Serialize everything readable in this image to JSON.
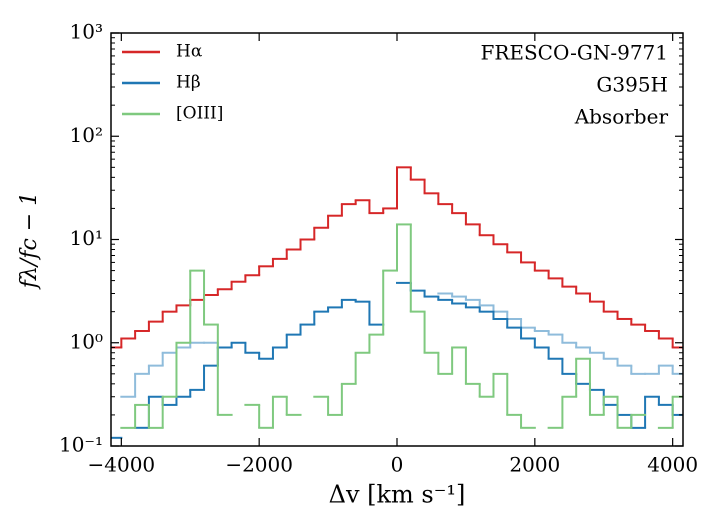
{
  "chart_data": {
    "type": "step",
    "log_y": true,
    "xlabel": "Δv [km s⁻¹]",
    "ylabel": "fλ/fc − 1",
    "annotations": [
      "FRESCO-GN-9771",
      "G395H",
      "Absorber"
    ],
    "legend": "upper left",
    "xlim": [
      -4150,
      4150
    ],
    "xticks": [
      {
        "value": -4000,
        "label": "−4000"
      },
      {
        "value": -2000,
        "label": "−2000"
      },
      0,
      2000,
      4000
    ],
    "ylim": [
      0.1,
      1000
    ],
    "yticks": [
      {
        "value": 0.1,
        "label": "10⁻¹"
      },
      {
        "value": 1,
        "label": "10⁰"
      },
      {
        "value": 10,
        "label": "10¹"
      },
      {
        "value": 100,
        "label": "10²"
      },
      {
        "value": 1000,
        "label": "10³"
      }
    ],
    "x": [
      -4100,
      -3900,
      -3700,
      -3500,
      -3300,
      -3100,
      -2900,
      -2700,
      -2500,
      -2300,
      -2100,
      -1900,
      -1700,
      -1500,
      -1300,
      -1100,
      -900,
      -700,
      -500,
      -300,
      -100,
      100,
      300,
      500,
      700,
      900,
      1100,
      1300,
      1500,
      1700,
      1900,
      2100,
      2300,
      2500,
      2700,
      2900,
      3100,
      3300,
      3500,
      3700,
      3900,
      4100
    ],
    "series": [
      {
        "color": "#8fbcdb",
        "values": [
          null,
          0.3,
          0.5,
          0.6,
          0.8,
          0.9,
          1.0,
          1.0,
          0.9,
          null,
          null,
          null,
          null,
          null,
          null,
          null,
          null,
          null,
          null,
          null,
          null,
          null,
          null,
          null,
          3.0,
          2.8,
          2.6,
          2.3,
          2.0,
          1.7,
          1.4,
          1.3,
          1.2,
          1.0,
          0.9,
          0.8,
          0.7,
          0.6,
          0.5,
          0.5,
          0.6,
          0.5
        ]
      },
      {
        "name": "Hα",
        "color": "#d62728",
        "values": [
          0.9,
          1.1,
          1.3,
          1.6,
          2.0,
          2.3,
          2.6,
          2.9,
          3.3,
          3.9,
          4.5,
          5.5,
          6.5,
          8,
          10,
          13,
          17,
          22,
          24,
          18,
          20,
          50,
          38,
          28,
          22,
          18,
          14,
          11,
          9,
          7.5,
          6,
          5,
          4.2,
          3.5,
          3,
          2.5,
          2,
          1.7,
          1.5,
          1.3,
          1.1,
          0.9
        ]
      },
      {
        "name": "Hβ",
        "color": "#1f77b4",
        "values": [
          0.12,
          null,
          0.15,
          0.3,
          0.25,
          0.3,
          0.35,
          0.6,
          0.9,
          1.0,
          0.8,
          0.7,
          0.9,
          1.2,
          1.5,
          2.0,
          2.2,
          2.6,
          2.5,
          1.5,
          null,
          3.8,
          3.2,
          2.8,
          2.6,
          2.4,
          2.2,
          2.0,
          1.7,
          1.4,
          1.1,
          0.9,
          0.7,
          0.5,
          0.4,
          0.35,
          0.25,
          0.2,
          0.15,
          0.3,
          0.25,
          0.2
        ]
      },
      {
        "name": "[OIII]",
        "color": "#7fc97f",
        "values": [
          null,
          0.15,
          0.25,
          0.15,
          0.3,
          1.0,
          5.0,
          1.5,
          0.2,
          null,
          0.25,
          0.15,
          0.3,
          0.2,
          null,
          0.3,
          0.2,
          0.4,
          0.8,
          1.2,
          5,
          14,
          2,
          0.8,
          0.5,
          0.9,
          0.4,
          0.3,
          0.5,
          0.2,
          0.15,
          null,
          0.15,
          0.3,
          0.7,
          0.2,
          0.3,
          0.15,
          0.2,
          null,
          0.15,
          0.3
        ]
      }
    ]
  }
}
